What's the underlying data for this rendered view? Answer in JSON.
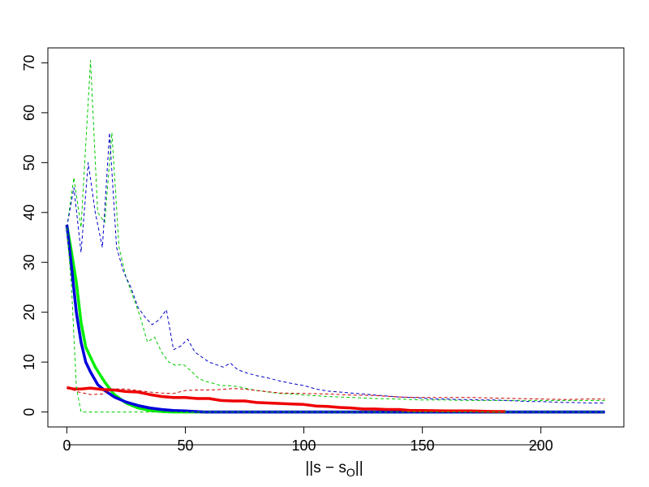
{
  "chart_data": {
    "type": "line",
    "title": "",
    "xlabel": "||s − s",
    "xlabel_subscript": "O",
    "xlabel_suffix": "||",
    "ylabel": "",
    "xlim": [
      -8,
      235
    ],
    "ylim": [
      -3,
      73
    ],
    "x_ticks": [
      0,
      50,
      100,
      150,
      200
    ],
    "y_ticks": [
      0,
      10,
      20,
      30,
      40,
      50,
      60,
      70
    ],
    "x_tick_labels": [
      "0",
      "50",
      "100",
      "150",
      "200"
    ],
    "y_tick_labels": [
      "0",
      "10",
      "20",
      "30",
      "40",
      "50",
      "60",
      "70"
    ],
    "grid": false,
    "legend": "none",
    "series": [
      {
        "color": "#00ee00",
        "style": "solid",
        "width": 3.5,
        "points": [
          [
            0,
            37.5
          ],
          [
            2,
            32
          ],
          [
            4,
            26
          ],
          [
            6,
            18
          ],
          [
            8,
            13
          ],
          [
            12,
            9
          ],
          [
            16,
            6
          ],
          [
            20,
            3.5
          ],
          [
            25,
            1.8
          ],
          [
            30,
            0.8
          ],
          [
            35,
            0.3
          ],
          [
            40,
            0.1
          ],
          [
            45,
            0
          ],
          [
            55,
            0
          ],
          [
            227,
            0
          ]
        ]
      },
      {
        "color": "#0000dd",
        "style": "solid",
        "width": 3.5,
        "points": [
          [
            0,
            37.5
          ],
          [
            2,
            29
          ],
          [
            4,
            20
          ],
          [
            6,
            14
          ],
          [
            8,
            10
          ],
          [
            10,
            8
          ],
          [
            13,
            5.5
          ],
          [
            16,
            4.3
          ],
          [
            20,
            3
          ],
          [
            25,
            2
          ],
          [
            30,
            1.3
          ],
          [
            35,
            0.8
          ],
          [
            40,
            0.5
          ],
          [
            45,
            0.3
          ],
          [
            50,
            0.2
          ],
          [
            58,
            0
          ],
          [
            227,
            0
          ]
        ]
      },
      {
        "color": "#ee0000",
        "style": "solid",
        "width": 3.5,
        "points": [
          [
            0,
            4.9
          ],
          [
            3,
            4.6
          ],
          [
            6,
            4.6
          ],
          [
            10,
            4.8
          ],
          [
            15,
            4.5
          ],
          [
            20,
            4.4
          ],
          [
            25,
            4.1
          ],
          [
            30,
            4
          ],
          [
            35,
            3.5
          ],
          [
            40,
            3.1
          ],
          [
            45,
            2.9
          ],
          [
            50,
            2.9
          ],
          [
            55,
            2.7
          ],
          [
            60,
            2.7
          ],
          [
            65,
            2.3
          ],
          [
            70,
            2.2
          ],
          [
            75,
            2.2
          ],
          [
            80,
            1.9
          ],
          [
            85,
            1.8
          ],
          [
            90,
            1.7
          ],
          [
            95,
            1.6
          ],
          [
            100,
            1.5
          ],
          [
            105,
            1.2
          ],
          [
            110,
            1.1
          ],
          [
            115,
            0.9
          ],
          [
            120,
            0.8
          ],
          [
            125,
            0.6
          ],
          [
            130,
            0.6
          ],
          [
            135,
            0.5
          ],
          [
            140,
            0.5
          ],
          [
            145,
            0.3
          ],
          [
            150,
            0.3
          ],
          [
            155,
            0.25
          ],
          [
            160,
            0.2
          ],
          [
            165,
            0.2
          ],
          [
            170,
            0.2
          ],
          [
            175,
            0.15
          ],
          [
            180,
            0.1
          ],
          [
            185,
            0.1
          ]
        ]
      },
      {
        "color": "#00cc00",
        "style": "dashed",
        "width": 1,
        "points": [
          [
            0,
            37
          ],
          [
            3,
            47
          ],
          [
            6,
            37
          ],
          [
            10,
            70.5
          ],
          [
            13,
            40
          ],
          [
            16,
            38
          ],
          [
            19,
            56
          ],
          [
            22,
            33
          ],
          [
            25,
            27
          ],
          [
            28,
            23
          ],
          [
            31,
            19
          ],
          [
            34,
            14
          ],
          [
            37,
            15
          ],
          [
            40,
            12
          ],
          [
            43,
            10
          ],
          [
            46,
            9.3
          ],
          [
            49,
            9.6
          ],
          [
            52,
            8.4
          ],
          [
            55,
            7
          ],
          [
            58,
            6.2
          ],
          [
            62,
            5.7
          ],
          [
            65,
            5.3
          ],
          [
            68,
            5.3
          ],
          [
            72,
            5.1
          ],
          [
            76,
            4.7
          ],
          [
            80,
            4.3
          ],
          [
            85,
            4
          ],
          [
            90,
            3.7
          ],
          [
            95,
            3.6
          ],
          [
            100,
            3.4
          ],
          [
            110,
            3.1
          ],
          [
            120,
            2.9
          ],
          [
            130,
            2.7
          ],
          [
            140,
            2.6
          ],
          [
            150,
            2.4
          ],
          [
            160,
            2.4
          ],
          [
            170,
            2.3
          ],
          [
            180,
            2.3
          ],
          [
            190,
            2.3
          ],
          [
            200,
            2.3
          ],
          [
            210,
            2.3
          ],
          [
            220,
            2.3
          ],
          [
            227,
            2.3
          ]
        ]
      },
      {
        "color": "#00cc00",
        "style": "dashed",
        "width": 1,
        "points": [
          [
            0,
            37
          ],
          [
            2,
            25
          ],
          [
            4,
            5
          ],
          [
            6,
            0
          ],
          [
            8,
            0
          ],
          [
            227,
            0
          ]
        ]
      },
      {
        "color": "#0000cc",
        "style": "dashed",
        "width": 1,
        "points": [
          [
            0,
            37
          ],
          [
            3,
            45
          ],
          [
            6,
            32
          ],
          [
            9,
            50
          ],
          [
            12,
            40
          ],
          [
            15,
            33
          ],
          [
            18,
            56
          ],
          [
            21,
            33
          ],
          [
            24,
            28
          ],
          [
            27,
            25
          ],
          [
            30,
            21
          ],
          [
            33,
            19
          ],
          [
            36,
            17.5
          ],
          [
            39,
            18.5
          ],
          [
            42,
            20.5
          ],
          [
            45,
            12.5
          ],
          [
            48,
            13.2
          ],
          [
            51,
            14.6
          ],
          [
            54,
            12
          ],
          [
            57,
            11
          ],
          [
            60,
            10
          ],
          [
            63,
            9.5
          ],
          [
            66,
            9
          ],
          [
            69,
            9.8
          ],
          [
            72,
            8.5
          ],
          [
            76,
            7.8
          ],
          [
            80,
            7.3
          ],
          [
            85,
            6.8
          ],
          [
            90,
            6.2
          ],
          [
            95,
            5.7
          ],
          [
            100,
            5.3
          ],
          [
            105,
            4.6
          ],
          [
            110,
            4.2
          ],
          [
            115,
            4
          ],
          [
            120,
            3.8
          ],
          [
            125,
            3.6
          ],
          [
            130,
            3.4
          ],
          [
            135,
            3.2
          ],
          [
            140,
            3
          ],
          [
            145,
            2.9
          ],
          [
            150,
            2.8
          ],
          [
            155,
            2.6
          ],
          [
            160,
            2.6
          ],
          [
            165,
            2.5
          ],
          [
            170,
            2.5
          ],
          [
            175,
            2.4
          ],
          [
            180,
            2.4
          ],
          [
            185,
            2.3
          ],
          [
            190,
            2.2
          ],
          [
            195,
            2.1
          ],
          [
            200,
            2.1
          ],
          [
            205,
            2
          ],
          [
            210,
            1.9
          ],
          [
            215,
            1.9
          ],
          [
            220,
            1.8
          ],
          [
            227,
            1.8
          ]
        ]
      },
      {
        "color": "#cc0000",
        "style": "dashed",
        "width": 1,
        "points": [
          [
            0,
            4.9
          ],
          [
            5,
            4
          ],
          [
            10,
            3.5
          ],
          [
            15,
            3.6
          ],
          [
            20,
            4.6
          ],
          [
            25,
            4.6
          ],
          [
            30,
            4.3
          ],
          [
            35,
            4
          ],
          [
            40,
            3.8
          ],
          [
            45,
            3.7
          ],
          [
            50,
            4.3
          ],
          [
            55,
            4.4
          ],
          [
            60,
            4.4
          ],
          [
            65,
            4.5
          ],
          [
            70,
            4.7
          ],
          [
            75,
            4.6
          ],
          [
            80,
            4.3
          ],
          [
            90,
            3.8
          ],
          [
            100,
            3.7
          ],
          [
            110,
            3.6
          ],
          [
            120,
            3.4
          ],
          [
            130,
            3.3
          ],
          [
            140,
            3
          ],
          [
            150,
            2.9
          ],
          [
            160,
            2.9
          ],
          [
            170,
            2.9
          ],
          [
            180,
            2.8
          ],
          [
            190,
            2.7
          ],
          [
            200,
            2.6
          ],
          [
            210,
            2.5
          ],
          [
            220,
            2.6
          ],
          [
            227,
            2.6
          ]
        ]
      }
    ]
  }
}
